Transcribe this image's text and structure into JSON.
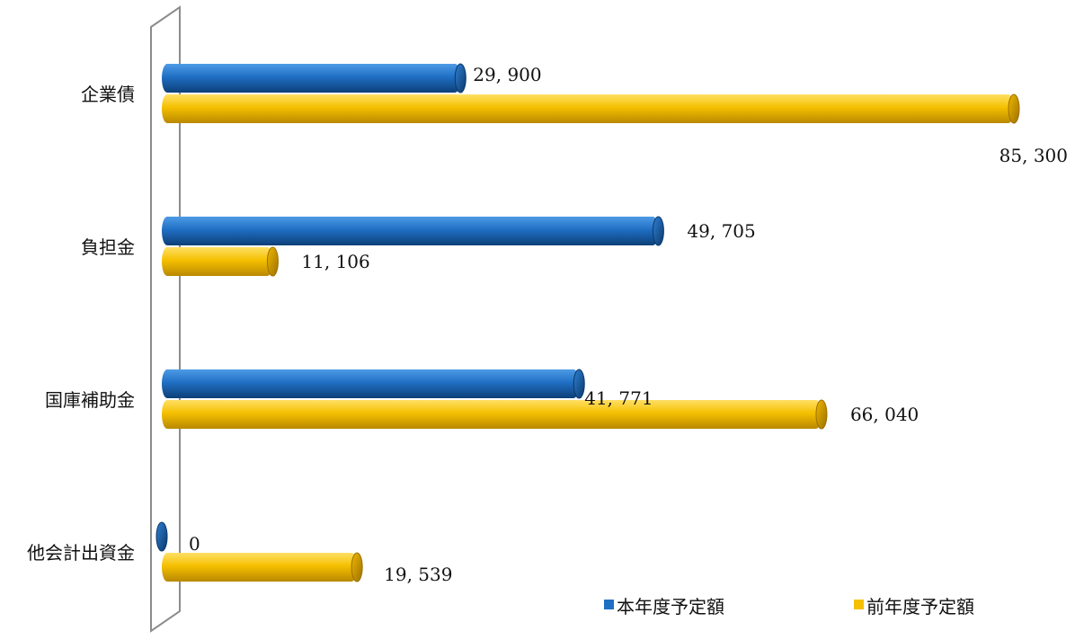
{
  "chart_data": {
    "type": "bar",
    "orientation": "horizontal",
    "categories": [
      "企業債",
      "負担金",
      "国庫補助金",
      "他会計出資金"
    ],
    "series": [
      {
        "name": "本年度予定額",
        "values": [
          29900,
          49705,
          41771,
          0
        ],
        "labels": [
          "29, 900",
          "49, 705",
          "41, 771",
          "0"
        ],
        "color": "#1f6fc4"
      },
      {
        "name": "前年度予定額",
        "values": [
          85300,
          11106,
          66040,
          19539
        ],
        "labels": [
          "85, 300",
          "11, 106",
          "66, 040",
          "19, 539"
        ],
        "color": "#f5c000"
      }
    ],
    "xlim": [
      0,
      85300
    ],
    "grid": false,
    "legend_position": "bottom-right",
    "style": "3d-cylinder"
  }
}
